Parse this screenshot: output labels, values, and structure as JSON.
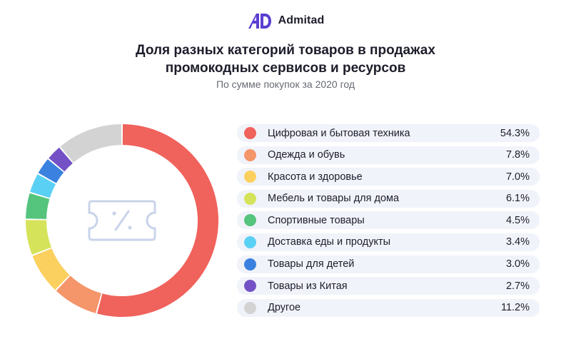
{
  "brand": {
    "name": "Admitad",
    "mark_color": "#5b3fd1"
  },
  "header": {
    "title_line1": "Доля разных категорий товаров в продажах",
    "title_line2": "промокодных сервисов и ресурсов",
    "subtitle": "По сумме покупок за 2020 год"
  },
  "center_icon": "coupon-percent-icon",
  "chart_data": {
    "type": "pie",
    "donut": true,
    "legend_position": "right",
    "unit": "%",
    "categories": [
      "Цифровая и бытовая техника",
      "Одежда и обувь",
      "Красота и здоровье",
      "Мебель и товары для дома",
      "Спортивные товары",
      "Доставка еды и продукты",
      "Товары для детей",
      "Товары из Китая",
      "Другое"
    ],
    "values": [
      54.3,
      7.8,
      7.0,
      6.1,
      4.5,
      3.4,
      3.0,
      2.7,
      11.2
    ],
    "value_labels": [
      "54.3%",
      "7.8%",
      "7.0%",
      "6.1%",
      "4.5%",
      "3.4%",
      "3.0%",
      "2.7%",
      "11.2%"
    ],
    "colors": [
      "#f0625c",
      "#f4956a",
      "#fbd05e",
      "#d5e35b",
      "#55c47d",
      "#5bd0f5",
      "#3b82e0",
      "#7452c6",
      "#d3d3d3"
    ]
  }
}
